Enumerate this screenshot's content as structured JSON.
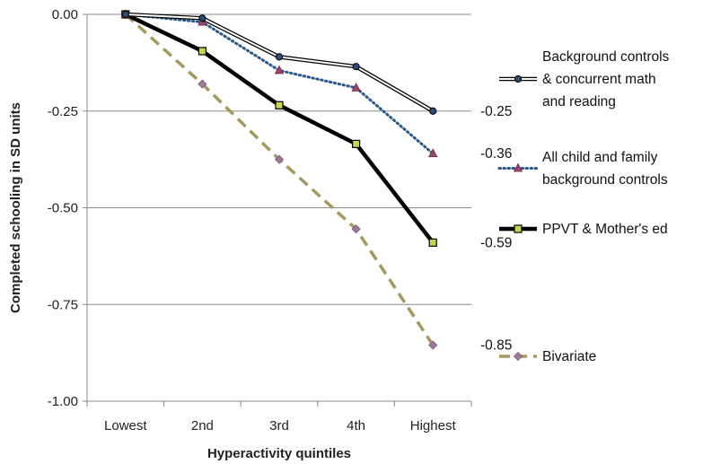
{
  "chart_data": {
    "type": "line",
    "title": "",
    "xlabel": "Hyperactivity quintiles",
    "ylabel": "Completed schooling in SD units",
    "categories": [
      "Lowest",
      "2nd",
      "3rd",
      "4th",
      "Highest"
    ],
    "ylim": [
      -1.0,
      0.0
    ],
    "yticks": [
      0.0,
      -0.25,
      -0.5,
      -0.75,
      -1.0
    ],
    "ytick_labels": [
      "0.00",
      "-0.25",
      "-0.50",
      "-0.75",
      "-1.00"
    ],
    "grid": "horizontal",
    "legend_position": "right",
    "series": [
      {
        "name": "Background controls & concurrent math and reading",
        "legend_lines": [
          "Background controls",
          "& concurrent math",
          "and reading"
        ],
        "values": [
          0.0,
          -0.01,
          -0.11,
          -0.135,
          -0.25
        ],
        "end_label": "-0.25",
        "color": "#000000",
        "style": "double",
        "marker": "circle",
        "marker_fill": "#2e4a7a"
      },
      {
        "name": "All child and family background controls",
        "legend_lines": [
          "All child and family",
          "background controls"
        ],
        "values": [
          0.0,
          -0.02,
          -0.145,
          -0.19,
          -0.36
        ],
        "end_label": "-0.36",
        "color": "#2a5a8c",
        "style": "dotted",
        "marker": "triangle",
        "marker_fill": "#a0446a"
      },
      {
        "name": "PPVT & Mother's ed",
        "legend_lines": [
          "PPVT & Mother's ed"
        ],
        "values": [
          0.0,
          -0.095,
          -0.235,
          -0.335,
          -0.59
        ],
        "end_label": "-0.59",
        "color": "#000000",
        "style": "thick",
        "marker": "square",
        "marker_fill": "#c8d64a"
      },
      {
        "name": "Bivariate",
        "legend_lines": [
          "Bivariate"
        ],
        "values": [
          0.0,
          -0.18,
          -0.375,
          -0.555,
          -0.855
        ],
        "end_label": "-0.85",
        "color": "#a59a5e",
        "style": "dashed",
        "marker": "diamond",
        "marker_fill": "#a07898"
      }
    ]
  }
}
